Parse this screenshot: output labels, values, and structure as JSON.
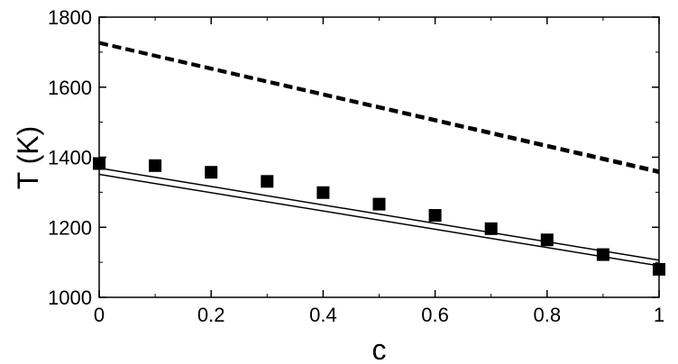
{
  "chart_data": {
    "type": "line",
    "xlabel": "c",
    "ylabel": "T (K)",
    "xlim": [
      0,
      1
    ],
    "ylim": [
      1000,
      1800
    ],
    "grid": false,
    "x_ticks": [
      "0",
      "0.2",
      "0.4",
      "0.6",
      "0.8",
      "1"
    ],
    "y_ticks": [
      "1000",
      "1200",
      "1400",
      "1600",
      "1800"
    ],
    "series": [
      {
        "style": "dashed",
        "color": "#000000",
        "x": [
          0,
          1
        ],
        "y": [
          1728,
          1361
        ]
      },
      {
        "style": "dashed",
        "color": "#000000",
        "x": [
          0,
          1
        ],
        "y": [
          1725,
          1356
        ]
      },
      {
        "style": "solid",
        "color": "#000000",
        "x": [
          0,
          1
        ],
        "y": [
          1369,
          1106
        ]
      },
      {
        "style": "solid",
        "color": "#000000",
        "x": [
          0,
          1
        ],
        "y": [
          1351,
          1090
        ]
      },
      {
        "style": "markers",
        "marker": "square",
        "color": "#000000",
        "x": [
          0,
          0.1,
          0.2,
          0.3,
          0.4,
          0.5,
          0.6,
          0.7,
          0.8,
          0.9,
          1.0
        ],
        "y": [
          1382,
          1376,
          1357,
          1331,
          1299,
          1266,
          1234,
          1196,
          1164,
          1122,
          1080
        ]
      }
    ]
  }
}
